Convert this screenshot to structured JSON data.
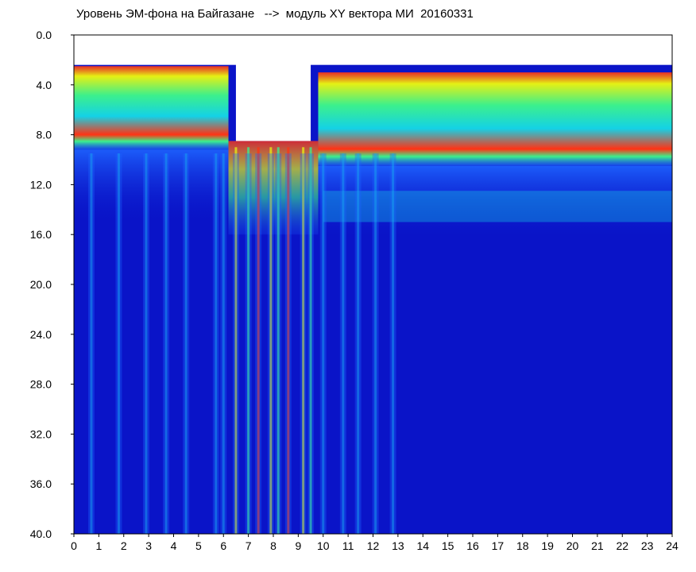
{
  "chart_data": {
    "type": "heatmap",
    "title": "Уровень ЭМ-фона на Байгазане   -->  модуль XY вектора МИ  20160331",
    "xlabel": "",
    "ylabel": "",
    "xlim": [
      0,
      24
    ],
    "ylim": [
      0,
      40
    ],
    "y_inverted": true,
    "x_ticks": [
      "0",
      "1",
      "2",
      "3",
      "4",
      "5",
      "6",
      "7",
      "8",
      "9",
      "10",
      "11",
      "12",
      "13",
      "14",
      "15",
      "16",
      "17",
      "18",
      "19",
      "20",
      "21",
      "22",
      "23",
      "24"
    ],
    "y_ticks": [
      "0.0",
      "4.0",
      "8.0",
      "12.0",
      "16.0",
      "20.0",
      "24.0",
      "28.0",
      "32.0",
      "36.0",
      "40.0"
    ],
    "grid": false,
    "colormap": [
      "#0a14c8",
      "#1e64ff",
      "#14d2e6",
      "#3cf08c",
      "#e6f014",
      "#ff3214"
    ],
    "background_color": "#ffffff",
    "bands": [
      {
        "x0": 0,
        "x1": 6.2,
        "upper_edge": 2.5,
        "red_to": 8.4,
        "cyan_to": 9.2,
        "level": "high"
      },
      {
        "x0": 6.2,
        "x1": 9.8,
        "upper_edge": 8.5,
        "cyan_to": 16,
        "level": "mixed"
      },
      {
        "x0": 9.8,
        "x1": 24,
        "upper_edge": 3.0,
        "red_to": 8.4,
        "cyan_to": 10.5,
        "level": "high"
      },
      {
        "x0": 10,
        "x1": 24,
        "y0": 12.5,
        "y1": 15.0,
        "level": "light"
      }
    ],
    "vertical_streaks_x": [
      0.7,
      1.8,
      2.9,
      3.7,
      4.5,
      5.7,
      6.0,
      6.5,
      7.0,
      7.4,
      7.9,
      8.2,
      8.6,
      9.2,
      9.5,
      10.0,
      10.8,
      11.4,
      12.1,
      12.8
    ]
  }
}
